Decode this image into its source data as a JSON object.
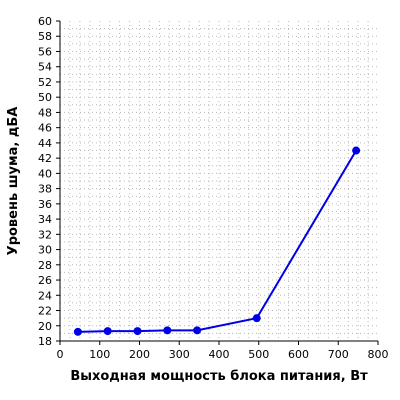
{
  "chart_data": {
    "type": "line",
    "title": "",
    "xlabel": "Выходная мощность блока питания, Вт",
    "ylabel": "Уровень шума, дБА",
    "xlim": [
      0,
      800
    ],
    "ylim": [
      18,
      60
    ],
    "x_ticks": [
      0,
      100,
      200,
      300,
      400,
      500,
      600,
      700,
      800
    ],
    "y_ticks": [
      18,
      20,
      22,
      24,
      26,
      28,
      30,
      32,
      34,
      36,
      38,
      40,
      42,
      44,
      46,
      48,
      50,
      52,
      54,
      56,
      58,
      60
    ],
    "grid": true,
    "legend": "none",
    "series": [
      {
        "color": "#0000e6",
        "x": [
          45,
          120,
          195,
          270,
          345,
          495,
          745
        ],
        "y": [
          19.2,
          19.3,
          19.3,
          19.4,
          19.4,
          21.0,
          43.0
        ]
      }
    ]
  }
}
